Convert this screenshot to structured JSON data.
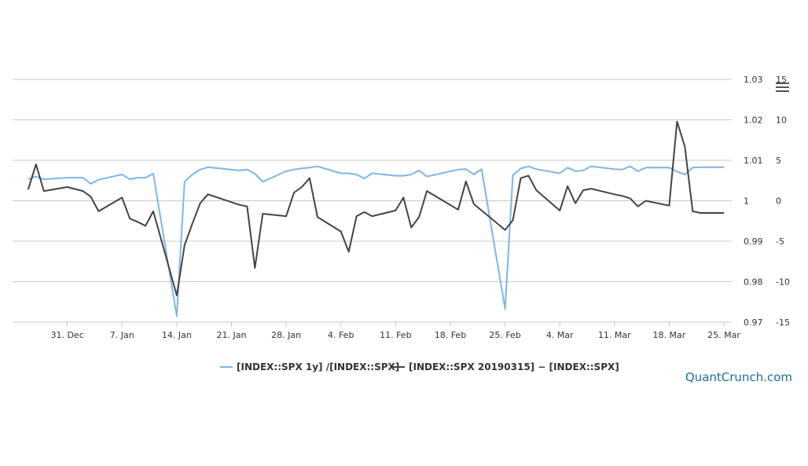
{
  "watermark": "QuantCrunch.com",
  "chart_data": {
    "type": "line",
    "title": "",
    "x_ticks": [
      "31. Dec",
      "7. Jan",
      "14. Jan",
      "21. Jan",
      "28. Jan",
      "4. Feb",
      "11. Feb",
      "18. Feb",
      "25. Feb",
      "4. Mar",
      "11. Mar",
      "18. Mar",
      "25. Mar"
    ],
    "left_axis": {
      "ticks": [
        "1.03",
        "1.02",
        "1.01",
        "1",
        "0.99",
        "0.98",
        "0.97"
      ],
      "range": [
        0.97,
        1.03
      ]
    },
    "right_axis": {
      "ticks": [
        "15",
        "10",
        "5",
        "0",
        "-5",
        "-10",
        "-15"
      ],
      "range": [
        -15,
        15
      ]
    },
    "grid": true,
    "legend_position": "bottom",
    "colors": {
      "series1": "#7cb5ec",
      "series2": "#434348"
    },
    "series": [
      {
        "name": "[INDEX::SPX 1y] /[INDEX::SPX]",
        "axis": "left",
        "points": [
          [
            "2018-12-26",
            1.0053
          ],
          [
            "2018-12-27",
            1.006
          ],
          [
            "2018-12-28",
            1.0053
          ],
          [
            "2018-12-31",
            1.0057
          ],
          [
            "2019-01-02",
            1.0057
          ],
          [
            "2019-01-03",
            1.0042
          ],
          [
            "2019-01-04",
            1.0052
          ],
          [
            "2019-01-07",
            1.0065
          ],
          [
            "2019-01-08",
            1.0053
          ],
          [
            "2019-01-09",
            1.0057
          ],
          [
            "2019-01-10",
            1.0057
          ],
          [
            "2019-01-11",
            1.0067
          ],
          [
            "2019-01-14",
            0.9715
          ],
          [
            "2019-01-15",
            1.0047
          ],
          [
            "2019-01-16",
            1.0065
          ],
          [
            "2019-01-17",
            1.0077
          ],
          [
            "2019-01-18",
            1.0083
          ],
          [
            "2019-01-22",
            1.0075
          ],
          [
            "2019-01-23",
            1.0077
          ],
          [
            "2019-01-24",
            1.0067
          ],
          [
            "2019-01-25",
            1.0047
          ],
          [
            "2019-01-28",
            1.0073
          ],
          [
            "2019-01-29",
            1.0077
          ],
          [
            "2019-01-30",
            1.008
          ],
          [
            "2019-01-31",
            1.0082
          ],
          [
            "2019-02-01",
            1.0085
          ],
          [
            "2019-02-04",
            1.0068
          ],
          [
            "2019-02-05",
            1.0068
          ],
          [
            "2019-02-06",
            1.0065
          ],
          [
            "2019-02-07",
            1.0055
          ],
          [
            "2019-02-08",
            1.0068
          ],
          [
            "2019-02-11",
            1.0062
          ],
          [
            "2019-02-12",
            1.0062
          ],
          [
            "2019-02-13",
            1.0065
          ],
          [
            "2019-02-14",
            1.0075
          ],
          [
            "2019-02-15",
            1.006
          ],
          [
            "2019-02-19",
            1.0077
          ],
          [
            "2019-02-20",
            1.0078
          ],
          [
            "2019-02-21",
            1.0065
          ],
          [
            "2019-02-22",
            1.0078
          ],
          [
            "2019-02-25",
            0.9733
          ],
          [
            "2019-02-26",
            1.0063
          ],
          [
            "2019-02-27",
            1.008
          ],
          [
            "2019-02-28",
            1.0085
          ],
          [
            "2019-03-01",
            1.0078
          ],
          [
            "2019-03-04",
            1.0068
          ],
          [
            "2019-03-05",
            1.0082
          ],
          [
            "2019-03-06",
            1.0073
          ],
          [
            "2019-03-07",
            1.0075
          ],
          [
            "2019-03-08",
            1.0085
          ],
          [
            "2019-03-11",
            1.0078
          ],
          [
            "2019-03-12",
            1.0077
          ],
          [
            "2019-03-13",
            1.0085
          ],
          [
            "2019-03-14",
            1.0073
          ],
          [
            "2019-03-15",
            1.0082
          ],
          [
            "2019-03-18",
            1.0082
          ],
          [
            "2019-03-19",
            1.0072
          ],
          [
            "2019-03-20",
            1.0065
          ],
          [
            "2019-03-21",
            1.0082
          ],
          [
            "2019-03-22",
            1.0083
          ],
          [
            "2019-03-25",
            1.0083
          ]
        ]
      },
      {
        "name": "[INDEX::SPX 20190315] − [INDEX::SPX]",
        "axis": "right",
        "points": [
          [
            "2018-12-26",
            1.4
          ],
          [
            "2018-12-27",
            4.5
          ],
          [
            "2018-12-28",
            1.2
          ],
          [
            "2018-12-31",
            1.7
          ],
          [
            "2019-01-02",
            1.2
          ],
          [
            "2019-01-03",
            0.5
          ],
          [
            "2019-01-04",
            -1.3
          ],
          [
            "2019-01-07",
            0.4
          ],
          [
            "2019-01-08",
            -2.2
          ],
          [
            "2019-01-09",
            -2.6
          ],
          [
            "2019-01-10",
            -3.1
          ],
          [
            "2019-01-11",
            -1.3
          ],
          [
            "2019-01-14",
            -11.7
          ],
          [
            "2019-01-15",
            -5.5
          ],
          [
            "2019-01-16",
            -2.8
          ],
          [
            "2019-01-17",
            -0.3
          ],
          [
            "2019-01-18",
            0.8
          ],
          [
            "2019-01-22",
            -0.5
          ],
          [
            "2019-01-23",
            -0.7
          ],
          [
            "2019-01-24",
            -8.3
          ],
          [
            "2019-01-25",
            -1.6
          ],
          [
            "2019-01-28",
            -1.9
          ],
          [
            "2019-01-29",
            1.0
          ],
          [
            "2019-01-30",
            1.7
          ],
          [
            "2019-01-31",
            2.8
          ],
          [
            "2019-02-01",
            -2.0
          ],
          [
            "2019-02-04",
            -3.8
          ],
          [
            "2019-02-05",
            -6.3
          ],
          [
            "2019-02-06",
            -1.9
          ],
          [
            "2019-02-07",
            -1.4
          ],
          [
            "2019-02-08",
            -1.9
          ],
          [
            "2019-02-11",
            -1.2
          ],
          [
            "2019-02-12",
            0.4
          ],
          [
            "2019-02-13",
            -3.3
          ],
          [
            "2019-02-14",
            -2.0
          ],
          [
            "2019-02-15",
            1.2
          ],
          [
            "2019-02-19",
            -1.1
          ],
          [
            "2019-02-20",
            2.4
          ],
          [
            "2019-02-21",
            -0.4
          ],
          [
            "2019-02-25",
            -3.6
          ],
          [
            "2019-02-26",
            -2.4
          ],
          [
            "2019-02-27",
            2.8
          ],
          [
            "2019-02-28",
            3.1
          ],
          [
            "2019-03-01",
            1.3
          ],
          [
            "2019-03-04",
            -1.2
          ],
          [
            "2019-03-05",
            1.8
          ],
          [
            "2019-03-06",
            -0.3
          ],
          [
            "2019-03-07",
            1.3
          ],
          [
            "2019-03-08",
            1.5
          ],
          [
            "2019-03-11",
            0.8
          ],
          [
            "2019-03-12",
            0.6
          ],
          [
            "2019-03-13",
            0.3
          ],
          [
            "2019-03-14",
            -0.7
          ],
          [
            "2019-03-15",
            0.0
          ],
          [
            "2019-03-18",
            -0.6
          ],
          [
            "2019-03-19",
            9.8
          ],
          [
            "2019-03-20",
            6.7
          ],
          [
            "2019-03-21",
            -1.3
          ],
          [
            "2019-03-22",
            -1.5
          ],
          [
            "2019-03-25",
            -1.5
          ]
        ]
      }
    ]
  }
}
